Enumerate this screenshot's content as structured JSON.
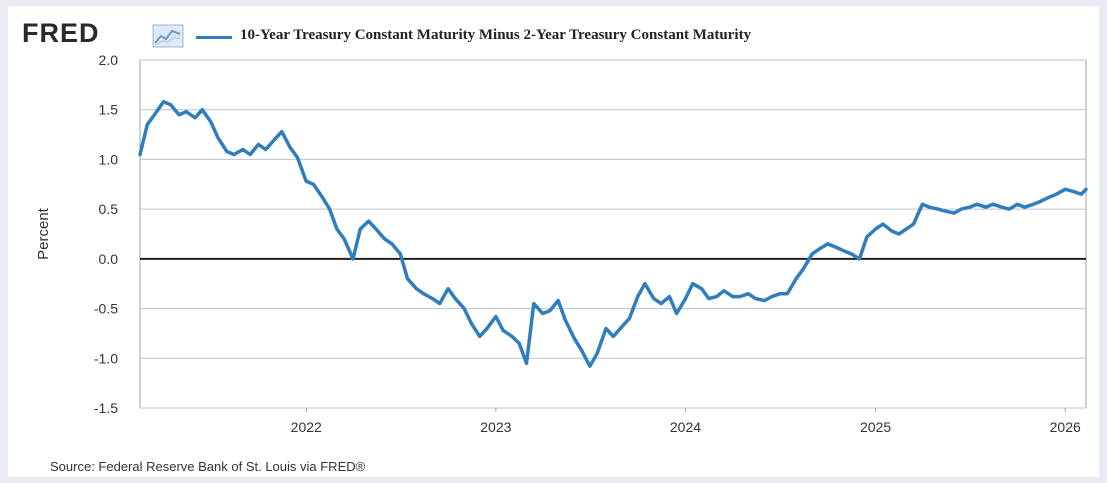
{
  "header": {
    "logo_text": "FRED",
    "logo_icon": "trend-line-icon"
  },
  "chart_data": {
    "type": "line",
    "title": "",
    "legend": [
      "10-Year Treasury Constant Maturity Minus 2-Year Treasury Constant Maturity"
    ],
    "xlabel": "",
    "ylabel": "Percent",
    "ylim": [
      -1.5,
      2.0
    ],
    "xlim": [
      "2021-02-15",
      "2026-02-10"
    ],
    "yticks": [
      "2.0",
      "1.5",
      "1.0",
      "0.5",
      "0.0",
      "-0.5",
      "-1.0",
      "-1.5"
    ],
    "xticks": [
      "2022",
      "2023",
      "2024",
      "2025",
      "2026"
    ],
    "grid": "horizontal",
    "legend_placement": "top",
    "color": "#2f7dbd",
    "series": [
      {
        "name": "10-Year Treasury Constant Maturity Minus 2-Year Treasury Constant Maturity",
        "x": [
          "2021-02-15",
          "2021-03-01",
          "2021-03-15",
          "2021-04-01",
          "2021-04-15",
          "2021-05-01",
          "2021-05-15",
          "2021-06-01",
          "2021-06-15",
          "2021-07-01",
          "2021-07-15",
          "2021-08-01",
          "2021-08-15",
          "2021-09-01",
          "2021-09-15",
          "2021-10-01",
          "2021-10-15",
          "2021-11-01",
          "2021-11-15",
          "2021-12-01",
          "2021-12-15",
          "2022-01-01",
          "2022-01-15",
          "2022-02-01",
          "2022-02-15",
          "2022-03-01",
          "2022-03-15",
          "2022-04-01",
          "2022-04-15",
          "2022-05-01",
          "2022-05-15",
          "2022-06-01",
          "2022-06-15",
          "2022-07-01",
          "2022-07-15",
          "2022-08-01",
          "2022-08-15",
          "2022-09-01",
          "2022-09-15",
          "2022-10-01",
          "2022-10-15",
          "2022-11-01",
          "2022-11-15",
          "2022-12-01",
          "2022-12-15",
          "2023-01-01",
          "2023-01-15",
          "2023-02-01",
          "2023-02-15",
          "2023-03-01",
          "2023-03-15",
          "2023-04-01",
          "2023-04-15",
          "2023-05-01",
          "2023-05-15",
          "2023-06-01",
          "2023-06-15",
          "2023-07-01",
          "2023-07-15",
          "2023-08-01",
          "2023-08-15",
          "2023-09-01",
          "2023-09-15",
          "2023-10-01",
          "2023-10-15",
          "2023-11-01",
          "2023-11-15",
          "2023-12-01",
          "2023-12-15",
          "2024-01-01",
          "2024-01-15",
          "2024-02-01",
          "2024-02-15",
          "2024-03-01",
          "2024-03-15",
          "2024-04-01",
          "2024-04-15",
          "2024-05-01",
          "2024-05-15",
          "2024-06-01",
          "2024-06-15",
          "2024-07-01",
          "2024-07-15",
          "2024-08-01",
          "2024-08-15",
          "2024-09-01",
          "2024-09-15",
          "2024-10-01",
          "2024-10-15",
          "2024-11-01",
          "2024-11-15",
          "2024-12-01",
          "2024-12-15",
          "2025-01-01",
          "2025-01-15",
          "2025-02-01",
          "2025-02-15",
          "2025-03-01",
          "2025-03-15",
          "2025-04-01",
          "2025-04-15",
          "2025-05-01",
          "2025-05-15",
          "2025-06-01",
          "2025-06-15",
          "2025-07-01",
          "2025-07-15",
          "2025-08-01",
          "2025-08-15",
          "2025-09-01",
          "2025-09-15",
          "2025-10-01",
          "2025-10-15",
          "2025-11-01",
          "2025-11-15",
          "2025-12-01",
          "2025-12-15",
          "2026-01-01",
          "2026-01-15",
          "2026-02-01",
          "2026-02-10"
        ],
        "values": [
          1.05,
          1.35,
          1.45,
          1.58,
          1.55,
          1.45,
          1.48,
          1.42,
          1.5,
          1.38,
          1.22,
          1.08,
          1.05,
          1.1,
          1.05,
          1.15,
          1.1,
          1.2,
          1.28,
          1.12,
          1.02,
          0.78,
          0.75,
          0.62,
          0.5,
          0.3,
          0.2,
          0.0,
          0.3,
          0.38,
          0.3,
          0.2,
          0.15,
          0.05,
          -0.2,
          -0.3,
          -0.35,
          -0.4,
          -0.45,
          -0.3,
          -0.4,
          -0.5,
          -0.65,
          -0.78,
          -0.7,
          -0.58,
          -0.72,
          -0.78,
          -0.85,
          -1.05,
          -0.45,
          -0.55,
          -0.52,
          -0.42,
          -0.62,
          -0.8,
          -0.92,
          -1.08,
          -0.95,
          -0.7,
          -0.78,
          -0.68,
          -0.6,
          -0.38,
          -0.25,
          -0.4,
          -0.45,
          -0.38,
          -0.55,
          -0.4,
          -0.25,
          -0.3,
          -0.4,
          -0.38,
          -0.32,
          -0.38,
          -0.38,
          -0.35,
          -0.4,
          -0.42,
          -0.38,
          -0.35,
          -0.35,
          -0.2,
          -0.1,
          0.05,
          0.1,
          0.15,
          0.12,
          0.08,
          0.05,
          0.0,
          0.22,
          0.3,
          0.35,
          0.28,
          0.25,
          0.3,
          0.35,
          0.55,
          0.52,
          0.5,
          0.48,
          0.46,
          0.5,
          0.52,
          0.55,
          0.52,
          0.55,
          0.52,
          0.5,
          0.55,
          0.52,
          0.55,
          0.58,
          0.62,
          0.65,
          0.7,
          0.68,
          0.65,
          0.7
        ]
      }
    ]
  },
  "footer": {
    "source": "Source: Federal Reserve Bank of St. Louis via FRED®"
  }
}
